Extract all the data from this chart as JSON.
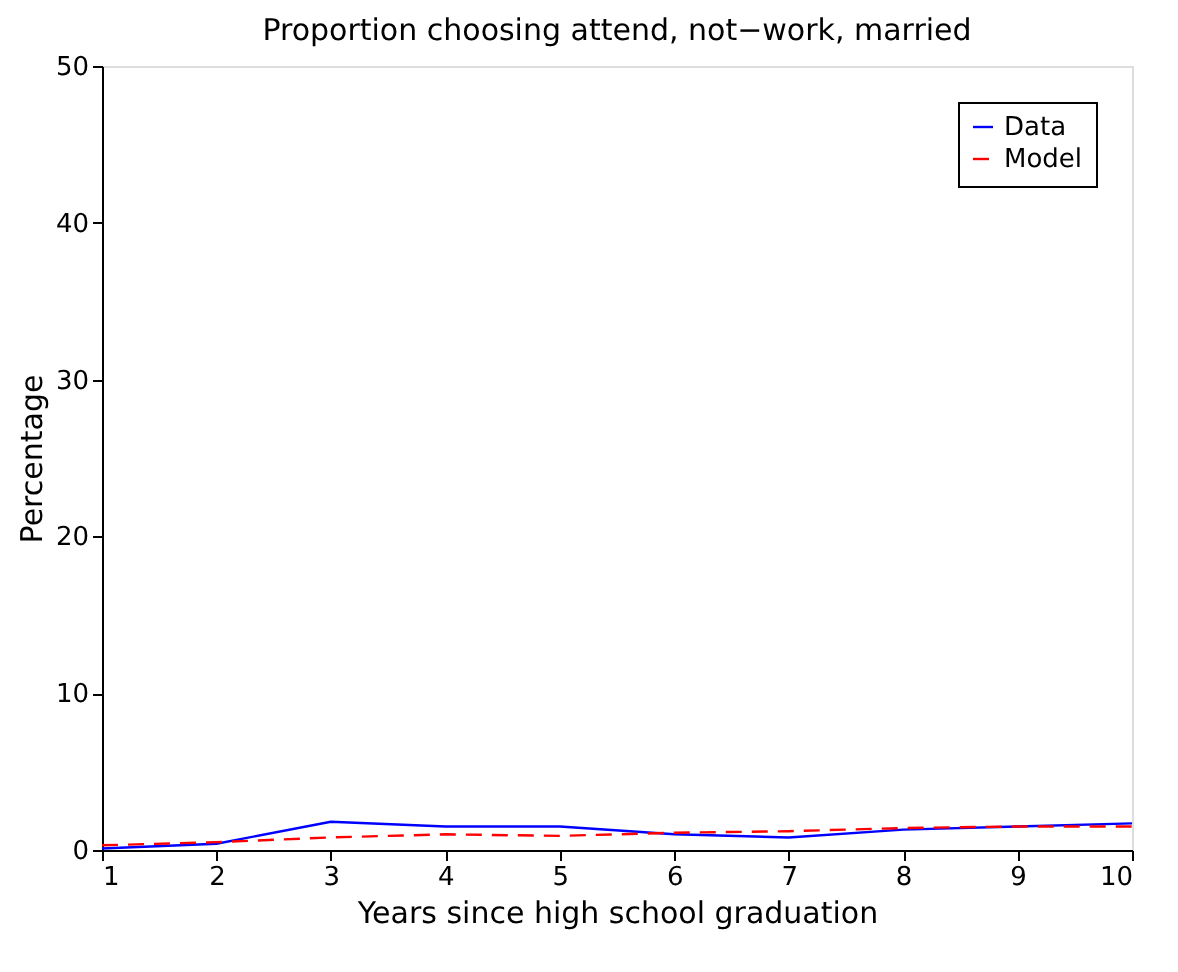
{
  "chart_data": {
    "type": "line",
    "title": "Proportion choosing attend, not−work, married",
    "xlabel": "Years since high school graduation",
    "ylabel": "Percentage",
    "x": [
      1,
      2,
      3,
      4,
      5,
      6,
      7,
      8,
      9,
      10
    ],
    "series": [
      {
        "name": "Data",
        "color": "#0000ff",
        "line_style": "solid",
        "values": [
          0.1,
          0.4,
          1.8,
          1.5,
          1.5,
          1.0,
          0.8,
          1.3,
          1.5,
          1.7
        ]
      },
      {
        "name": "Model",
        "color": "#ff0000",
        "line_style": "dashed",
        "values": [
          0.3,
          0.5,
          0.8,
          1.0,
          0.9,
          1.1,
          1.2,
          1.4,
          1.5,
          1.5
        ]
      }
    ],
    "xlim": [
      1,
      10
    ],
    "xticks": [
      1,
      2,
      3,
      4,
      5,
      6,
      7,
      8,
      9,
      10
    ],
    "ylim": [
      0,
      50
    ],
    "yticks": [
      0,
      10,
      20,
      30,
      40,
      50
    ],
    "grid": false,
    "legend": "top right",
    "marker": "none"
  }
}
